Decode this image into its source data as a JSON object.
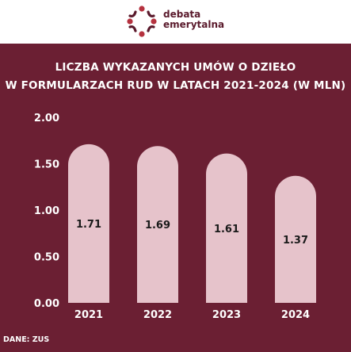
{
  "brand": {
    "line1": "debata",
    "line2": "emerytalna"
  },
  "title": {
    "line1": "LICZBA WYKAZANYCH UMÓW O DZIEŁO",
    "line2": "W FORMULARZACH RUD W LATACH 2021-2024 (W MLN)"
  },
  "source": "DANE: ZUS",
  "colors": {
    "background": "#6b1f33",
    "bar": "#e6c3cb",
    "text": "#ffffff",
    "label": "#1a1a1a",
    "logo_dots": "#b5323f",
    "logo_arcs": "#5a1a2c"
  },
  "chart_data": {
    "type": "bar",
    "categories": [
      "2021",
      "2022",
      "2023",
      "2024"
    ],
    "values": [
      1.71,
      1.69,
      1.61,
      1.37
    ],
    "value_labels": [
      "1.71",
      "1.69",
      "1.61",
      "1.37"
    ],
    "y_ticks": [
      "0.00",
      "0.50",
      "1.00",
      "1.50",
      "2.00"
    ],
    "ylim": [
      0,
      2
    ],
    "grid": false,
    "legend": "none"
  }
}
